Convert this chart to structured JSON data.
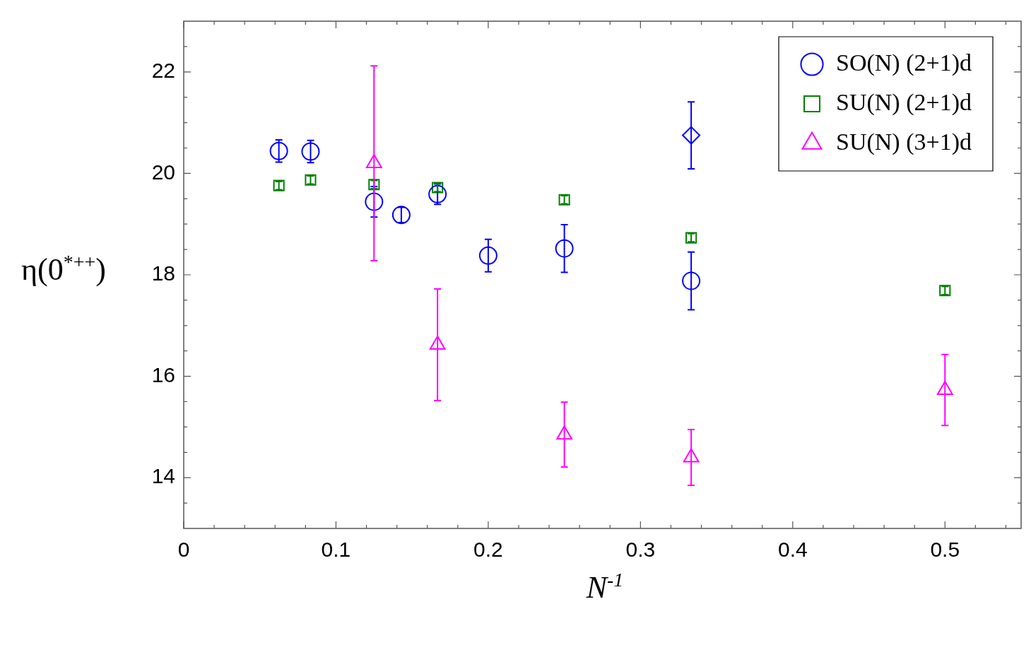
{
  "chart_data": {
    "type": "scatter",
    "xlabel": "N$^{-1}$",
    "ylabel": "η(0$^{*++}$)",
    "xlim": [
      0,
      0.55
    ],
    "ylim": [
      13,
      23
    ],
    "xticks": [
      0,
      {
        "value": 0.02,
        "label": null
      },
      {
        "value": 0.04,
        "label": null
      },
      {
        "value": 0.06,
        "label": null
      },
      {
        "value": 0.08,
        "label": null
      },
      0.1,
      {
        "value": 0.12,
        "label": null
      },
      {
        "value": 0.14,
        "label": null
      },
      {
        "value": 0.16,
        "label": null
      },
      {
        "value": 0.18,
        "label": null
      },
      0.2,
      {
        "value": 0.22,
        "label": null
      },
      {
        "value": 0.24,
        "label": null
      },
      {
        "value": 0.26,
        "label": null
      },
      {
        "value": 0.28,
        "label": null
      },
      0.3,
      {
        "value": 0.32,
        "label": null
      },
      {
        "value": 0.34,
        "label": null
      },
      {
        "value": 0.36,
        "label": null
      },
      {
        "value": 0.38,
        "label": null
      },
      0.4,
      {
        "value": 0.42,
        "label": null
      },
      {
        "value": 0.44,
        "label": null
      },
      {
        "value": 0.46,
        "label": null
      },
      {
        "value": 0.48,
        "label": null
      },
      0.5,
      {
        "value": 0.52,
        "label": null
      },
      {
        "value": 0.54,
        "label": null
      }
    ],
    "yticks": [
      {
        "value": 13.5,
        "label": null
      },
      14,
      {
        "value": 14.5,
        "label": null
      },
      {
        "value": 15,
        "label": null
      },
      {
        "value": 15.5,
        "label": null
      },
      16,
      {
        "value": 16.5,
        "label": null
      },
      {
        "value": 17,
        "label": null
      },
      {
        "value": 17.5,
        "label": null
      },
      18,
      {
        "value": 18.5,
        "label": null
      },
      {
        "value": 19,
        "label": null
      },
      {
        "value": 19.5,
        "label": null
      },
      20,
      {
        "value": 20.5,
        "label": null
      },
      {
        "value": 21,
        "label": null
      },
      {
        "value": 21.5,
        "label": null
      },
      22,
      {
        "value": 22.5,
        "label": null
      }
    ],
    "grid": false,
    "legend": "top right",
    "series": [
      {
        "name": "SO(N) (2+1)d",
        "color": "#0000ff",
        "marker": "circle",
        "x": [
          0.0625,
          0.0833,
          0.125,
          0.1429,
          0.1667,
          0.2,
          0.25,
          0.3333
        ],
        "values": [
          20.44,
          20.43,
          19.44,
          19.18,
          19.59,
          18.38,
          18.52,
          17.88
        ],
        "errors": [
          0.22,
          0.22,
          0.3,
          0.15,
          0.2,
          0.32,
          0.47,
          0.57
        ]
      },
      {
        "color": "#0000ff",
        "marker": "diamond",
        "x": [
          0.3333
        ],
        "values": [
          20.75
        ],
        "errors": [
          0.66
        ]
      },
      {
        "name": "SU(N) (2+1)d",
        "color": "#008000",
        "marker": "square",
        "x": [
          0.0625,
          0.0833,
          0.125,
          0.1667,
          0.25,
          0.3333,
          0.5
        ],
        "values": [
          19.76,
          19.87,
          19.78,
          19.72,
          19.48,
          18.73,
          17.69
        ],
        "errors": [
          0.08,
          0.08,
          0.08,
          0.08,
          0.08,
          0.08,
          0.08
        ]
      },
      {
        "name": "SU(N) (3+1)d",
        "color": "#ff00ff",
        "marker": "triangle",
        "x": [
          0.125,
          0.1667,
          0.25,
          0.3333,
          0.5
        ],
        "values": [
          20.2,
          16.62,
          14.85,
          14.4,
          15.73
        ],
        "errors": [
          1.92,
          1.1,
          0.64,
          0.55,
          0.7
        ]
      }
    ]
  }
}
